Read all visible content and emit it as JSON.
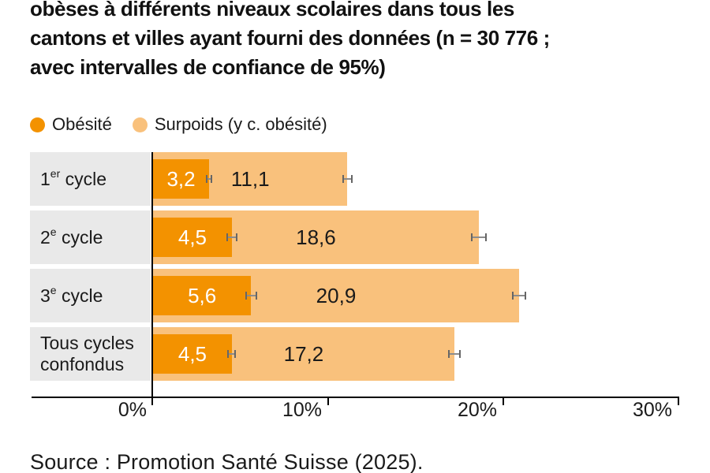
{
  "title": {
    "lines": [
      "obèses à différents niveaux scolaires dans tous les",
      "cantons et villes ayant fourni des données (n = 30 776 ;",
      "avec intervalles de confiance de 95%)"
    ]
  },
  "legend": {
    "items": [
      {
        "label": "Obésité",
        "color": "#F39200"
      },
      {
        "label": "Surpoids (y c. obésité)",
        "color": "#F9C17C"
      }
    ]
  },
  "chart_data": {
    "type": "bar",
    "orientation": "horizontal",
    "unit": "percent",
    "categories": [
      "1er cycle",
      "2e cycle",
      "3e cycle",
      "Tous cycles confondus"
    ],
    "category_parts": [
      [
        {
          "t": "1"
        },
        {
          "t": "er",
          "sup": true
        },
        {
          "t": " cycle"
        }
      ],
      [
        {
          "t": "2"
        },
        {
          "t": "e",
          "sup": true
        },
        {
          "t": " cycle"
        }
      ],
      [
        {
          "t": "3"
        },
        {
          "t": "e",
          "sup": true
        },
        {
          "t": " cycle"
        }
      ],
      [
        {
          "t": "Tous cycles confondus"
        }
      ]
    ],
    "series": [
      {
        "name": "Obésité",
        "color": "#F39200",
        "label_color": "#FFFFFF",
        "values": [
          3.2,
          4.5,
          5.6,
          4.5
        ],
        "labels": [
          "3,2",
          "4,5",
          "5,6",
          "4,5"
        ],
        "ci_half_pct": [
          0.2,
          0.3,
          0.35,
          0.25
        ]
      },
      {
        "name": "Surpoids (y c. obésité)",
        "color": "#F9C17C",
        "label_color": "#1A1A1A",
        "values": [
          11.1,
          18.6,
          20.9,
          17.2
        ],
        "labels": [
          "11,1",
          "18,6",
          "20,9",
          "17,2"
        ],
        "ci_half_pct": [
          0.3,
          0.45,
          0.4,
          0.35
        ]
      }
    ],
    "x_axis": {
      "tick_labels": [
        "0%",
        "10%",
        "20%",
        "30%"
      ],
      "tick_values": [
        0,
        10,
        20,
        30
      ],
      "range": [
        0,
        30
      ],
      "grid": false
    },
    "error_bars": "95% confidence intervals",
    "legend_position": "top"
  },
  "source": "Source : Promotion Santé Suisse (2025)."
}
